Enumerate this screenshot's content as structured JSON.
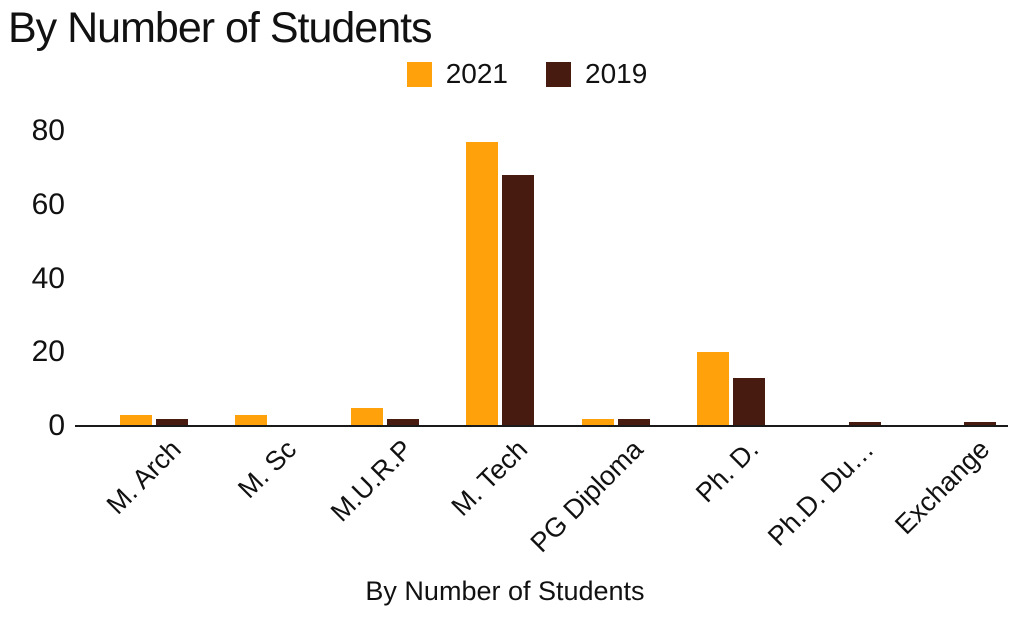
{
  "title": "By Number of Students",
  "colors": {
    "series_2021": "#FFA10A",
    "series_2019": "#471B10",
    "axis": "#1a1a1a",
    "text": "#111111"
  },
  "chart_data": {
    "type": "bar",
    "title": "By Number of Students",
    "xlabel": "By Number of Students",
    "ylabel": "",
    "categories": [
      "M. Arch",
      "M. Sc",
      "M.U.R.P",
      "M. Tech",
      "PG Diploma",
      "Ph. D.",
      "Ph.D. Du…",
      "Exchange"
    ],
    "series": [
      {
        "name": "2021",
        "color": "#FFA10A",
        "values": [
          3,
          3,
          5,
          77,
          2,
          20,
          0,
          0
        ]
      },
      {
        "name": "2019",
        "color": "#471B10",
        "values": [
          2,
          0,
          2,
          68,
          2,
          13,
          1,
          1
        ]
      }
    ],
    "ylim": [
      0,
      80
    ],
    "yticks": [
      0,
      20,
      40,
      60,
      80
    ],
    "grid": false,
    "legend_position": "top"
  }
}
